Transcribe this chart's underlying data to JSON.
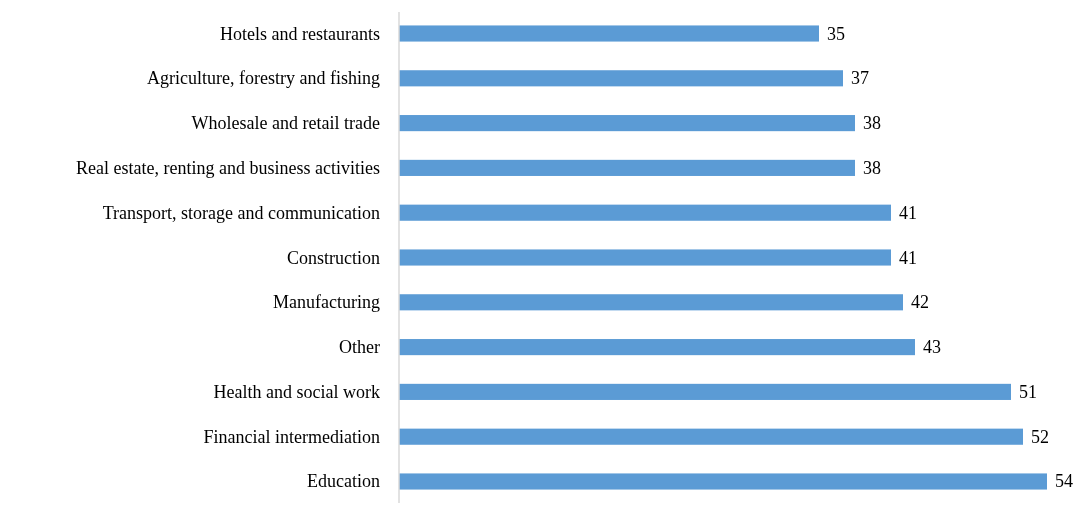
{
  "chart_data": {
    "type": "bar",
    "orientation": "horizontal",
    "categories": [
      "Hotels and restaurants",
      "Agriculture, forestry and fishing",
      "Wholesale and retail trade",
      "Real estate, renting and business activities",
      "Transport, storage and communication",
      "Construction",
      "Manufacturing",
      "Other",
      "Health and social work",
      "Financial intermediation",
      "Education"
    ],
    "values": [
      35,
      37,
      38,
      38,
      41,
      41,
      42,
      43,
      51,
      52,
      54
    ],
    "color": "#5b9bd5",
    "data_labels": true,
    "tick_labels": "y"
  }
}
